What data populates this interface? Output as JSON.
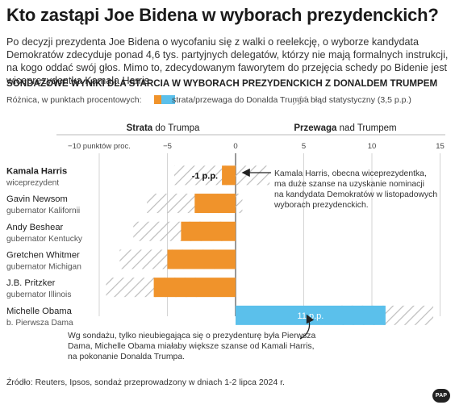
{
  "title": "Kto zastąpi Joe Bidena w wyborach prezydenckich?",
  "lead": "Po decyzji prezydenta Joe Bidena o wycofaniu się z walki o reelekcję, o wyborze kandydata Demokratów zdecyduje ponad 4,6 tys. partyjnych delegatów, którzy nie mają formalnych instrukcji, na kogo oddać swój głos. Mimo to, zdecydowanym faworytem do przejęcia schedy po Bidenie jest wiceprezydentka Kamala Harris.",
  "subtitle": "SONDAŻOWE WYNIKI DLA STARCIA W WYBORACH PREZYDENCKICH Z DONALDEM TRUMPEM",
  "legend": {
    "intro": "Różnica, w punktach procentowych:",
    "bar_label": "strata/przewaga do Donalda Trumpa",
    "error_label": "błąd statystyczny (3,5 p.p.)"
  },
  "colors": {
    "loss": "#f0932b",
    "gain": "#5bc0eb",
    "hatch": "#bdbdbd",
    "axis": "#777777"
  },
  "chart_data": {
    "type": "bar",
    "orientation": "horizontal",
    "header_left_bold": "Strata",
    "header_left_rest": " do Trumpa",
    "header_right_bold": "Przewaga",
    "header_right_rest": " nad Trumpem",
    "xlim": [
      -12,
      15
    ],
    "ticks": [
      -10,
      -5,
      0,
      5,
      10,
      15
    ],
    "tick_labels": [
      "−10 punktów proc.",
      "−5",
      "0",
      "5",
      "10",
      "15"
    ],
    "margin_of_error": 3.5,
    "categories": [
      {
        "name": "Kamala Harris",
        "role": "wiceprezydent",
        "bold": true
      },
      {
        "name": "Gavin Newsom",
        "role": "gubernator Kalifornii"
      },
      {
        "name": "Andy Beshear",
        "role": "gubernator Kentucky"
      },
      {
        "name": "Gretchen Whitmer",
        "role": "gubernator Michigan"
      },
      {
        "name": "J.B. Pritzker",
        "role": "gubernator Illinois"
      },
      {
        "name": "Michelle Obama",
        "role": "b. Pierwsza Dama"
      }
    ],
    "values": [
      -1,
      -3,
      -4,
      -5,
      -6,
      11
    ],
    "value_labels": [
      "-1 p.p.",
      "",
      "",
      "",
      "",
      "11 p.p."
    ]
  },
  "annotations": {
    "harris": [
      "Kamala Harris, obecna wiceprezydentka,",
      "ma duże szanse na uzyskanie nominacji",
      "na kandydata Demokratów w listopadowych",
      "wyborach prezydenckich."
    ],
    "obama": [
      "Wg sondażu, tylko nieubiegająca się o prezydenturę była Pierwsza",
      "Dama, Michelle Obama miałaby większe szanse od Kamali Harris,",
      "na pokonanie Donalda Trumpa."
    ]
  },
  "source": "Źródło: Reuters, Ipsos, sondaż przeprowadzony w dniach 1-2 lipca 2024 r.",
  "logo": "PAP"
}
